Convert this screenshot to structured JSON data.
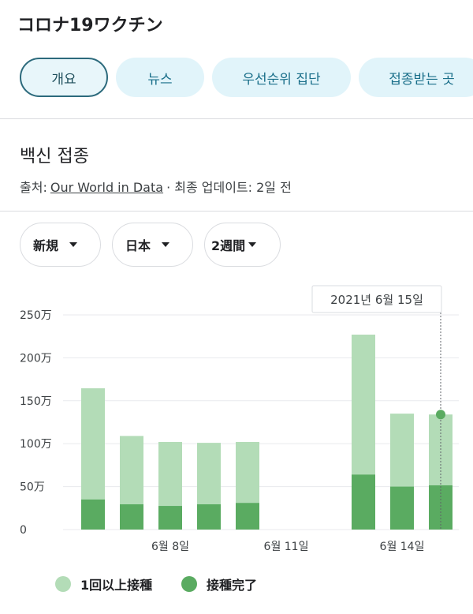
{
  "header": {
    "title": "コロナ19ワクチン"
  },
  "tabs": [
    "개요",
    "뉴스",
    "우선순위 집단",
    "접종받는 곳"
  ],
  "section": {
    "title": "백신 접종",
    "source_label": "출처:",
    "source_link": "Our World in Data",
    "updated": "· 최종 업데이트: 2일 전"
  },
  "filters": [
    "新規",
    "日本",
    "2週間"
  ],
  "chart_data": {
    "type": "bar",
    "categories": [
      null,
      null,
      "6월 8일",
      null,
      null,
      "6월 11일",
      null,
      null,
      "6월 14일",
      null
    ],
    "series": [
      {
        "name": "1回以上接種",
        "color": "#b3dcb7",
        "values": [
          164.5,
          109,
          102,
          101,
          102,
          null,
          null,
          227,
          135,
          134
        ]
      },
      {
        "name": "接種完了",
        "color": "#5aab61",
        "values": [
          35,
          29.4,
          27.5,
          29.4,
          31,
          null,
          null,
          64,
          50,
          51.5
        ]
      }
    ],
    "ylim": [
      0,
      250
    ],
    "yticks": [
      0,
      {
        "value": 50,
        "label": "50万"
      },
      {
        "value": 100,
        "label": "100万"
      },
      {
        "value": 150,
        "label": "150万"
      },
      {
        "value": 200,
        "label": "200万"
      },
      {
        "value": 250,
        "label": "250万"
      }
    ],
    "grid": true,
    "tooltip": "2021년 6월 15일"
  }
}
